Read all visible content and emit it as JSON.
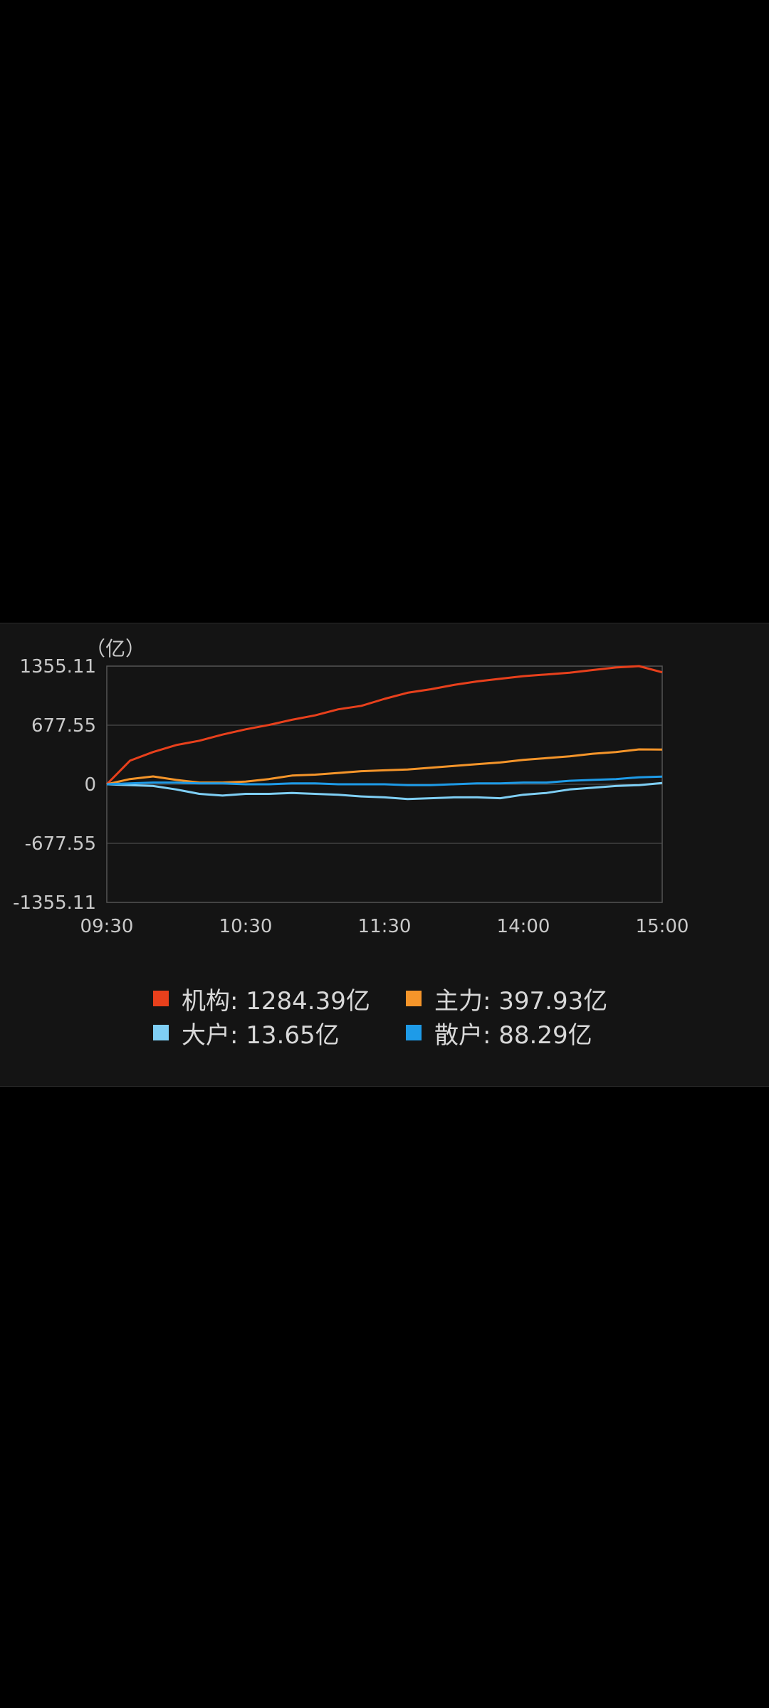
{
  "chart_data": {
    "type": "line",
    "unit_label": "（亿）",
    "y_ticks": [
      "1355.11",
      "677.55",
      "0",
      "-677.55",
      "-1355.11"
    ],
    "ylim": [
      -1355.11,
      1355.11
    ],
    "x_ticks": [
      "09:30",
      "10:30",
      "11:30",
      "14:00",
      "15:00"
    ],
    "grid": true,
    "legend_position": "bottom",
    "x": [
      0,
      10,
      20,
      30,
      40,
      50,
      60,
      70,
      80,
      90,
      100,
      110,
      120,
      130,
      140,
      150,
      160,
      170,
      180,
      190,
      200,
      210,
      220,
      230,
      240
    ],
    "series": [
      {
        "name": "机构",
        "legend_value": "1284.39亿",
        "color": "#e8401c",
        "values": [
          0,
          270,
          370,
          450,
          500,
          570,
          630,
          680,
          740,
          790,
          860,
          900,
          980,
          1050,
          1090,
          1140,
          1180,
          1210,
          1240,
          1260,
          1280,
          1310,
          1340,
          1355,
          1284.39
        ]
      },
      {
        "name": "主力",
        "legend_value": "397.93亿",
        "color": "#f5952a",
        "values": [
          0,
          60,
          90,
          50,
          20,
          20,
          30,
          60,
          100,
          110,
          130,
          150,
          160,
          170,
          190,
          210,
          230,
          250,
          280,
          300,
          320,
          350,
          370,
          400,
          397.93
        ]
      },
      {
        "name": "大户",
        "legend_value": "13.65亿",
        "color": "#7fcff5",
        "values": [
          0,
          -10,
          -20,
          -60,
          -110,
          -130,
          -110,
          -110,
          -100,
          -110,
          -120,
          -140,
          -150,
          -170,
          -160,
          -150,
          -150,
          -160,
          -120,
          -100,
          -60,
          -40,
          -20,
          -10,
          13.65
        ]
      },
      {
        "name": "散户",
        "legend_value": "88.29亿",
        "color": "#1e9be8",
        "values": [
          0,
          10,
          20,
          20,
          10,
          10,
          0,
          0,
          10,
          10,
          0,
          0,
          0,
          -10,
          -10,
          0,
          10,
          10,
          20,
          20,
          40,
          50,
          60,
          80,
          88.29
        ]
      }
    ]
  }
}
